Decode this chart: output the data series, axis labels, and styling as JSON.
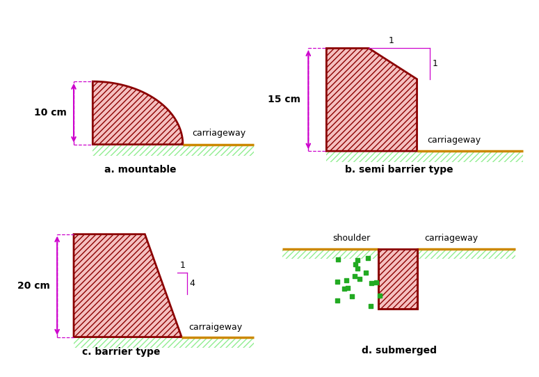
{
  "bg": "#ffffff",
  "dark_red": "#8B0000",
  "fill_red": "#f5c0c0",
  "ground_line": "#cc8800",
  "ground_hatch": "#90EE90",
  "arrow_col": "#cc00cc",
  "panels": [
    {
      "type": "mountable",
      "label": "a. mountable",
      "dim": "10 cm",
      "cw": "carriageway"
    },
    {
      "type": "semi_barrier",
      "label": "b. semi barrier type",
      "dim": "15 cm",
      "cw": "carriageway"
    },
    {
      "type": "barrier",
      "label": "c. barrier type",
      "dim": "20 cm",
      "cw": "carraigeway"
    },
    {
      "type": "submerged",
      "label": "d. submerged",
      "shoulder": "shoulder",
      "cw": "carriageway"
    }
  ]
}
